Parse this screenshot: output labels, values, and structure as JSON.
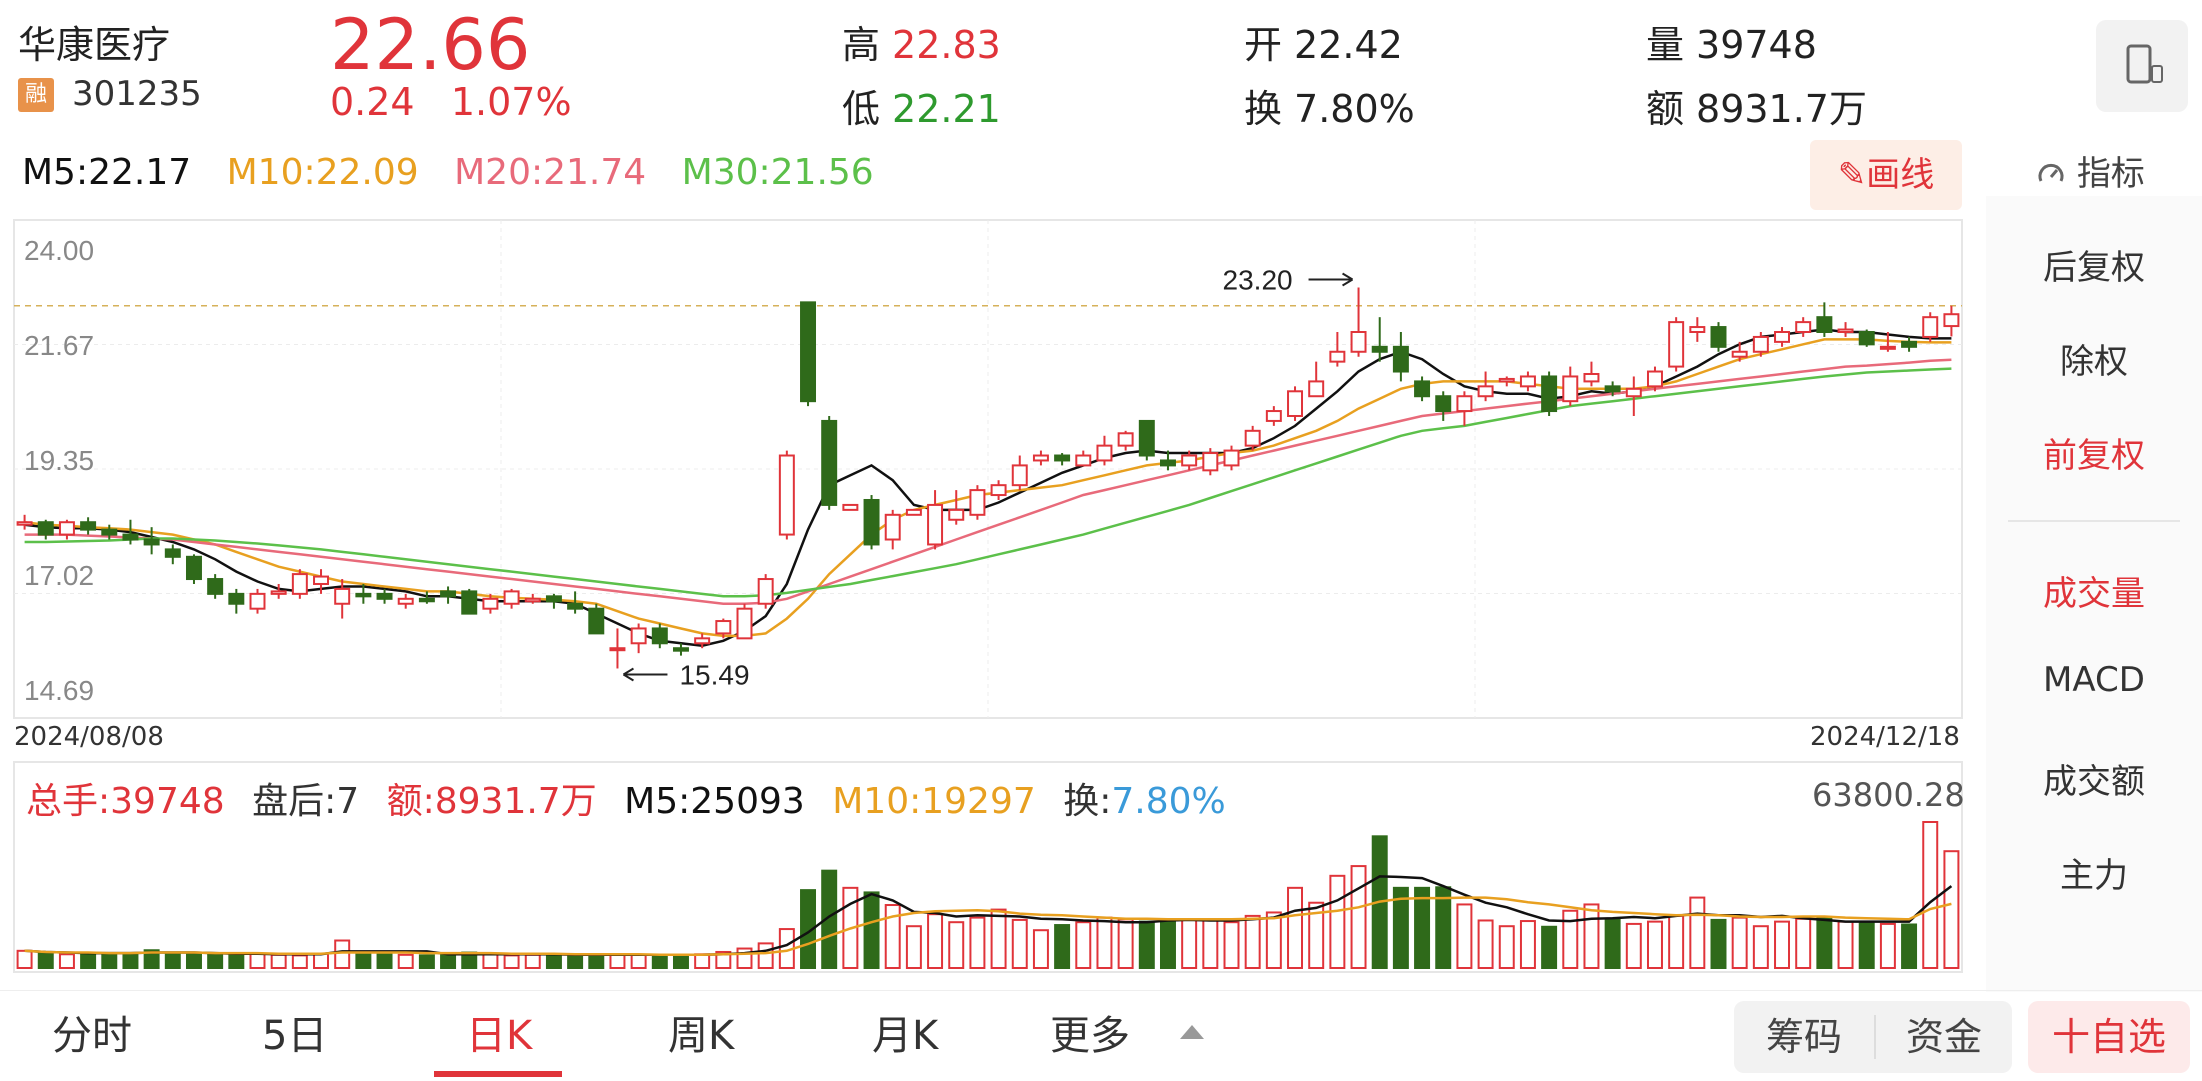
{
  "header": {
    "stock_name": "华康医疗",
    "badge": "融",
    "stock_code": "301235",
    "price": "22.66",
    "change_abs": "0.24",
    "change_pct": "1.07%",
    "high_label": "高",
    "high": "22.83",
    "low_label": "低",
    "low": "22.21",
    "open_label": "开",
    "open": "22.42",
    "turnover_label": "换",
    "turnover": "7.80%",
    "volume_label": "量",
    "volume": "39748",
    "amount_label": "额",
    "amount": "8931.7万"
  },
  "ma_bar": {
    "m5": "M5:22.17",
    "m10": "M10:22.09",
    "m20": "M20:21.74",
    "m30": "M30:21.56",
    "draw_label": "画线"
  },
  "side_panel": {
    "indicator_label": "指标",
    "items": [
      "后复权",
      "除权",
      "前复权",
      "成交量",
      "MACD",
      "成交额",
      "主力"
    ],
    "active": [
      "前复权",
      "成交量"
    ]
  },
  "volume_bar": {
    "total": "总手:39748",
    "after": "盘后:7",
    "amount": "额:8931.7万",
    "m5": "M5:25093",
    "m10": "M10:19297",
    "turnover_label": "换:",
    "turnover": "7.80%",
    "max": "63800.28"
  },
  "tabs": [
    "分时",
    "5日",
    "日K",
    "周K",
    "月K",
    "更多"
  ],
  "active_tab": "日K",
  "buttons": {
    "chips": "筹码",
    "funds": "资金",
    "favorite": "十自选"
  },
  "colors": {
    "up": "#e0343a",
    "down": "#2f6a1a",
    "ma5": "#111111",
    "ma10": "#e8a020",
    "ma20": "#e86a7a",
    "ma30": "#5cc04a"
  },
  "chart_data": {
    "type": "candlestick",
    "x_start": "2024/08/08",
    "x_end": "2024/12/18",
    "y_ticks": [
      "24.00",
      "21.67",
      "19.35",
      "17.02",
      "14.69"
    ],
    "ylim": [
      14.69,
      24.0
    ],
    "annotations": [
      {
        "label": "23.20",
        "type": "high"
      },
      {
        "label": "15.49",
        "type": "low"
      }
    ],
    "reference_line": 22.83,
    "candles": [
      [
        18.4,
        18.6,
        18.3,
        18.45
      ],
      [
        18.45,
        18.5,
        18.1,
        18.2
      ],
      [
        18.2,
        18.5,
        18.1,
        18.45
      ],
      [
        18.45,
        18.55,
        18.2,
        18.3
      ],
      [
        18.3,
        18.4,
        18.1,
        18.2
      ],
      [
        18.2,
        18.5,
        18.0,
        18.1
      ],
      [
        18.1,
        18.35,
        17.8,
        18.0
      ],
      [
        17.9,
        18.0,
        17.6,
        17.75
      ],
      [
        17.75,
        17.8,
        17.2,
        17.3
      ],
      [
        17.3,
        17.4,
        16.9,
        17.0
      ],
      [
        17.0,
        17.1,
        16.6,
        16.8
      ],
      [
        16.7,
        17.1,
        16.6,
        17.0
      ],
      [
        17.0,
        17.2,
        16.9,
        17.05
      ],
      [
        17.0,
        17.5,
        16.9,
        17.4
      ],
      [
        17.2,
        17.5,
        17.0,
        17.35
      ],
      [
        16.8,
        17.3,
        16.5,
        17.1
      ],
      [
        17.0,
        17.2,
        16.8,
        16.95
      ],
      [
        17.0,
        17.1,
        16.8,
        16.9
      ],
      [
        16.8,
        17.0,
        16.7,
        16.9
      ],
      [
        16.9,
        17.05,
        16.8,
        16.85
      ],
      [
        17.05,
        17.15,
        16.8,
        16.95
      ],
      [
        17.05,
        17.1,
        16.6,
        16.6
      ],
      [
        16.7,
        17.0,
        16.6,
        16.9
      ],
      [
        16.8,
        17.1,
        16.7,
        17.05
      ],
      [
        16.85,
        17.0,
        16.8,
        16.9
      ],
      [
        16.95,
        17.0,
        16.7,
        16.85
      ],
      [
        16.8,
        17.05,
        16.6,
        16.7
      ],
      [
        16.7,
        16.8,
        16.2,
        16.2
      ],
      [
        15.9,
        16.3,
        15.49,
        15.9
      ],
      [
        16.0,
        16.4,
        15.8,
        16.3
      ],
      [
        16.3,
        16.4,
        15.9,
        16.0
      ],
      [
        15.9,
        16.0,
        15.75,
        15.85
      ],
      [
        16.0,
        16.2,
        15.9,
        16.1
      ],
      [
        16.2,
        16.5,
        16.1,
        16.45
      ],
      [
        16.1,
        16.8,
        16.1,
        16.7
      ],
      [
        16.8,
        17.4,
        16.7,
        17.3
      ],
      [
        18.2,
        19.9,
        18.1,
        19.8
      ],
      [
        22.9,
        22.9,
        20.8,
        20.9
      ],
      [
        20.5,
        20.6,
        18.7,
        18.8
      ],
      [
        18.7,
        18.8,
        18.7,
        18.8
      ],
      [
        18.9,
        19.0,
        17.9,
        18.0
      ],
      [
        18.1,
        18.7,
        17.9,
        18.6
      ],
      [
        18.6,
        18.7,
        18.6,
        18.7
      ],
      [
        18.0,
        19.1,
        17.9,
        18.8
      ],
      [
        18.5,
        19.1,
        18.4,
        18.7
      ],
      [
        18.6,
        19.2,
        18.5,
        19.1
      ],
      [
        19.0,
        19.3,
        18.9,
        19.2
      ],
      [
        19.2,
        19.8,
        19.1,
        19.6
      ],
      [
        19.7,
        19.9,
        19.6,
        19.8
      ],
      [
        19.8,
        19.85,
        19.6,
        19.7
      ],
      [
        19.6,
        19.9,
        19.6,
        19.8
      ],
      [
        19.7,
        20.2,
        19.6,
        20.0
      ],
      [
        20.0,
        20.3,
        19.9,
        20.25
      ],
      [
        20.5,
        20.5,
        19.7,
        19.8
      ],
      [
        19.7,
        19.9,
        19.5,
        19.6
      ],
      [
        19.6,
        19.9,
        19.5,
        19.8
      ],
      [
        19.5,
        19.95,
        19.4,
        19.85
      ],
      [
        19.6,
        20.0,
        19.5,
        19.9
      ],
      [
        20.0,
        20.4,
        19.9,
        20.3
      ],
      [
        20.5,
        20.8,
        20.4,
        20.7
      ],
      [
        20.6,
        21.2,
        20.5,
        21.1
      ],
      [
        21.0,
        21.7,
        21.0,
        21.3
      ],
      [
        21.7,
        22.3,
        21.6,
        21.9
      ],
      [
        21.9,
        23.2,
        21.8,
        22.3
      ],
      [
        22.0,
        22.6,
        21.7,
        21.9
      ],
      [
        22.0,
        22.3,
        21.3,
        21.5
      ],
      [
        21.3,
        21.4,
        20.9,
        21.0
      ],
      [
        21.0,
        21.1,
        20.5,
        20.7
      ],
      [
        20.7,
        21.1,
        20.4,
        21.0
      ],
      [
        21.0,
        21.5,
        20.9,
        21.2
      ],
      [
        21.3,
        21.4,
        21.2,
        21.35
      ],
      [
        21.2,
        21.5,
        21.1,
        21.4
      ],
      [
        21.4,
        21.5,
        20.6,
        20.7
      ],
      [
        20.9,
        21.6,
        20.8,
        21.4
      ],
      [
        21.3,
        21.7,
        21.2,
        21.45
      ],
      [
        21.2,
        21.3,
        21.0,
        21.1
      ],
      [
        21.0,
        21.4,
        20.6,
        21.15
      ],
      [
        21.2,
        21.6,
        21.1,
        21.5
      ],
      [
        21.6,
        22.6,
        21.5,
        22.5
      ],
      [
        22.3,
        22.6,
        22.1,
        22.4
      ],
      [
        22.4,
        22.5,
        21.9,
        22.0
      ],
      [
        21.8,
        22.1,
        21.7,
        21.9
      ],
      [
        21.9,
        22.3,
        21.8,
        22.2
      ],
      [
        22.1,
        22.4,
        22.0,
        22.3
      ],
      [
        22.3,
        22.6,
        22.2,
        22.5
      ],
      [
        22.6,
        22.9,
        22.2,
        22.3
      ],
      [
        22.3,
        22.5,
        22.2,
        22.35
      ],
      [
        22.3,
        22.35,
        22.0,
        22.05
      ],
      [
        22.0,
        22.3,
        21.9,
        22.0
      ],
      [
        22.1,
        22.2,
        21.9,
        22.0
      ],
      [
        22.2,
        22.7,
        22.1,
        22.6
      ],
      [
        22.42,
        22.83,
        22.21,
        22.66
      ]
    ],
    "ma_lines": {
      "M5": [
        18.4,
        18.35,
        18.33,
        18.33,
        18.3,
        18.25,
        18.15,
        18.05,
        17.9,
        17.7,
        17.45,
        17.25,
        17.1,
        17.05,
        17.1,
        17.15,
        17.15,
        17.1,
        17.05,
        16.95,
        16.95,
        16.9,
        16.85,
        16.85,
        16.85,
        16.85,
        16.8,
        16.6,
        16.4,
        16.2,
        16.05,
        16.0,
        15.95,
        16.05,
        16.25,
        16.55,
        17.2,
        18.3,
        19.2,
        19.4,
        19.6,
        19.3,
        18.8,
        18.7,
        18.7,
        18.7,
        18.85,
        19.05,
        19.25,
        19.45,
        19.6,
        19.75,
        19.85,
        19.9,
        19.85,
        19.85,
        19.85,
        19.85,
        19.95,
        20.15,
        20.4,
        20.75,
        21.1,
        21.5,
        21.75,
        21.9,
        21.75,
        21.45,
        21.2,
        21.1,
        21.05,
        21.05,
        20.95,
        21.0,
        21.1,
        21.05,
        21.1,
        21.2,
        21.4,
        21.6,
        21.85,
        22.05,
        22.2,
        22.25,
        22.3,
        22.35,
        22.3,
        22.3,
        22.25,
        22.2,
        22.17,
        22.17
      ],
      "M10": [
        18.45,
        18.4,
        18.38,
        18.35,
        18.33,
        18.3,
        18.25,
        18.2,
        18.1,
        18.0,
        17.85,
        17.7,
        17.55,
        17.45,
        17.35,
        17.25,
        17.2,
        17.15,
        17.1,
        17.05,
        17.05,
        17.0,
        16.95,
        16.92,
        16.9,
        16.88,
        16.85,
        16.8,
        16.65,
        16.5,
        16.4,
        16.3,
        16.2,
        16.15,
        16.15,
        16.2,
        16.5,
        16.9,
        17.4,
        17.8,
        18.2,
        18.5,
        18.7,
        18.8,
        18.9,
        19.0,
        19.05,
        19.1,
        19.15,
        19.2,
        19.3,
        19.4,
        19.5,
        19.6,
        19.65,
        19.7,
        19.78,
        19.85,
        19.9,
        20.0,
        20.15,
        20.3,
        20.5,
        20.75,
        20.95,
        21.15,
        21.25,
        21.3,
        21.3,
        21.3,
        21.3,
        21.25,
        21.2,
        21.15,
        21.15,
        21.15,
        21.15,
        21.2,
        21.3,
        21.45,
        21.6,
        21.75,
        21.85,
        21.95,
        22.05,
        22.15,
        22.15,
        22.15,
        22.12,
        22.1,
        22.09,
        22.09
      ],
      "M20": [
        18.2,
        18.2,
        18.2,
        18.18,
        18.16,
        18.14,
        18.12,
        18.1,
        18.05,
        18.0,
        17.95,
        17.9,
        17.85,
        17.8,
        17.75,
        17.7,
        17.65,
        17.6,
        17.55,
        17.5,
        17.45,
        17.4,
        17.35,
        17.3,
        17.25,
        17.2,
        17.15,
        17.1,
        17.05,
        17.0,
        16.95,
        16.9,
        16.85,
        16.8,
        16.8,
        16.82,
        16.9,
        17.05,
        17.2,
        17.35,
        17.5,
        17.65,
        17.8,
        17.95,
        18.1,
        18.25,
        18.4,
        18.55,
        18.7,
        18.85,
        19.0,
        19.1,
        19.2,
        19.3,
        19.4,
        19.5,
        19.6,
        19.7,
        19.8,
        19.9,
        20.0,
        20.1,
        20.2,
        20.3,
        20.4,
        20.5,
        20.6,
        20.65,
        20.7,
        20.75,
        20.8,
        20.85,
        20.9,
        20.95,
        21.0,
        21.05,
        21.1,
        21.15,
        21.2,
        21.25,
        21.3,
        21.35,
        21.4,
        21.45,
        21.5,
        21.55,
        21.6,
        21.62,
        21.65,
        21.68,
        21.72,
        21.74
      ],
      "M30": [
        18.05,
        18.05,
        18.06,
        18.07,
        18.08,
        18.1,
        18.12,
        18.12,
        18.1,
        18.08,
        18.05,
        18.02,
        17.98,
        17.94,
        17.9,
        17.85,
        17.8,
        17.75,
        17.7,
        17.65,
        17.6,
        17.55,
        17.5,
        17.45,
        17.4,
        17.35,
        17.3,
        17.25,
        17.2,
        17.15,
        17.1,
        17.05,
        17.0,
        16.95,
        16.95,
        16.97,
        17.02,
        17.08,
        17.14,
        17.2,
        17.28,
        17.36,
        17.44,
        17.52,
        17.6,
        17.7,
        17.8,
        17.9,
        18.0,
        18.1,
        18.2,
        18.32,
        18.44,
        18.56,
        18.68,
        18.8,
        18.94,
        19.08,
        19.22,
        19.36,
        19.5,
        19.64,
        19.78,
        19.92,
        20.06,
        20.2,
        20.3,
        20.35,
        20.4,
        20.48,
        20.56,
        20.64,
        20.72,
        20.8,
        20.85,
        20.9,
        20.95,
        21.0,
        21.05,
        21.1,
        21.15,
        21.2,
        21.25,
        21.3,
        21.35,
        21.4,
        21.44,
        21.48,
        21.5,
        21.52,
        21.54,
        21.56
      ]
    },
    "volume": [
      3,
      2.6,
      2.4,
      2.3,
      2.4,
      2.5,
      3.1,
      2.6,
      2.5,
      2.4,
      2.4,
      2.5,
      2.3,
      2.2,
      2.5,
      4.8,
      2.7,
      2.4,
      2.3,
      2.2,
      2.4,
      2.7,
      2.5,
      2.2,
      2.3,
      2.4,
      2.1,
      2.2,
      2.4,
      2.3,
      2.1,
      2.3,
      2.4,
      2.8,
      3.4,
      4.3,
      6.8,
      13.6,
      17.0,
      14.0,
      13.2,
      11.0,
      7.3,
      9.4,
      8.0,
      8.8,
      10.2,
      8.4,
      6.6,
      7.5,
      8.0,
      8.8,
      8.5,
      8.1,
      8.3,
      8.4,
      8.3,
      8.0,
      9.1,
      9.7,
      14.0,
      11.4,
      16.1,
      17.8,
      23.0,
      14.0,
      14.0,
      14.1,
      11.1,
      8.3,
      7.3,
      8.2,
      7.2,
      10.0,
      11.1,
      8.6,
      7.7,
      8.1,
      9.1,
      12.3,
      8.4,
      8.8,
      7.3,
      8.1,
      8.6,
      8.8,
      8.1,
      8.1,
      7.7,
      7.6,
      25.5,
      20.4
    ],
    "volume_ma5": [
      3,
      2.8,
      2.7,
      2.6,
      2.6,
      2.6,
      2.7,
      2.7,
      2.7,
      2.6,
      2.5,
      2.5,
      2.4,
      2.4,
      2.4,
      2.9,
      2.9,
      2.9,
      2.9,
      2.9,
      2.4,
      2.4,
      2.4,
      2.4,
      2.4,
      2.4,
      2.3,
      2.3,
      2.3,
      2.3,
      2.3,
      2.3,
      2.3,
      2.4,
      2.6,
      3.0,
      4.0,
      6.2,
      9.0,
      11.2,
      12.9,
      11.8,
      9.8,
      9.6,
      9.0,
      9.2,
      9.1,
      9.0,
      8.6,
      8.5,
      8.3,
      8.2,
      8.0,
      8.0,
      8.3,
      8.4,
      8.3,
      8.3,
      8.5,
      8.8,
      10.0,
      10.5,
      11.8,
      13.9,
      16.0,
      15.9,
      15.7,
      14.3,
      12.8,
      11.4,
      10.6,
      9.4,
      8.3,
      8.2,
      8.6,
      8.7,
      8.9,
      8.7,
      9.1,
      9.5,
      9.2,
      9.2,
      8.9,
      9.1,
      8.7,
      8.4,
      8.1,
      8.1,
      8.1,
      8.1,
      11.5,
      14.3
    ],
    "volume_ma10": [
      3,
      2.8,
      2.7,
      2.7,
      2.6,
      2.6,
      2.7,
      2.7,
      2.7,
      2.6,
      2.6,
      2.6,
      2.5,
      2.5,
      2.5,
      2.7,
      2.7,
      2.7,
      2.7,
      2.6,
      2.6,
      2.6,
      2.6,
      2.5,
      2.5,
      2.5,
      2.4,
      2.4,
      2.4,
      2.4,
      2.3,
      2.3,
      2.3,
      2.4,
      2.5,
      2.6,
      3.0,
      4.2,
      5.6,
      6.9,
      8.0,
      9.0,
      9.6,
      9.9,
      10.0,
      10.1,
      9.9,
      9.5,
      9.3,
      9.2,
      9.0,
      8.8,
      8.6,
      8.6,
      8.5,
      8.5,
      8.5,
      8.5,
      8.6,
      8.7,
      9.2,
      9.6,
      10.0,
      10.6,
      11.6,
      12.1,
      12.2,
      12.2,
      12.3,
      12.3,
      12.0,
      11.5,
      11.1,
      10.6,
      10.1,
      9.8,
      9.6,
      9.4,
      9.2,
      9.3,
      9.2,
      9.0,
      8.9,
      8.9,
      9.0,
      9.0,
      8.8,
      8.7,
      8.6,
      8.5,
      10.3,
      11.2
    ]
  }
}
